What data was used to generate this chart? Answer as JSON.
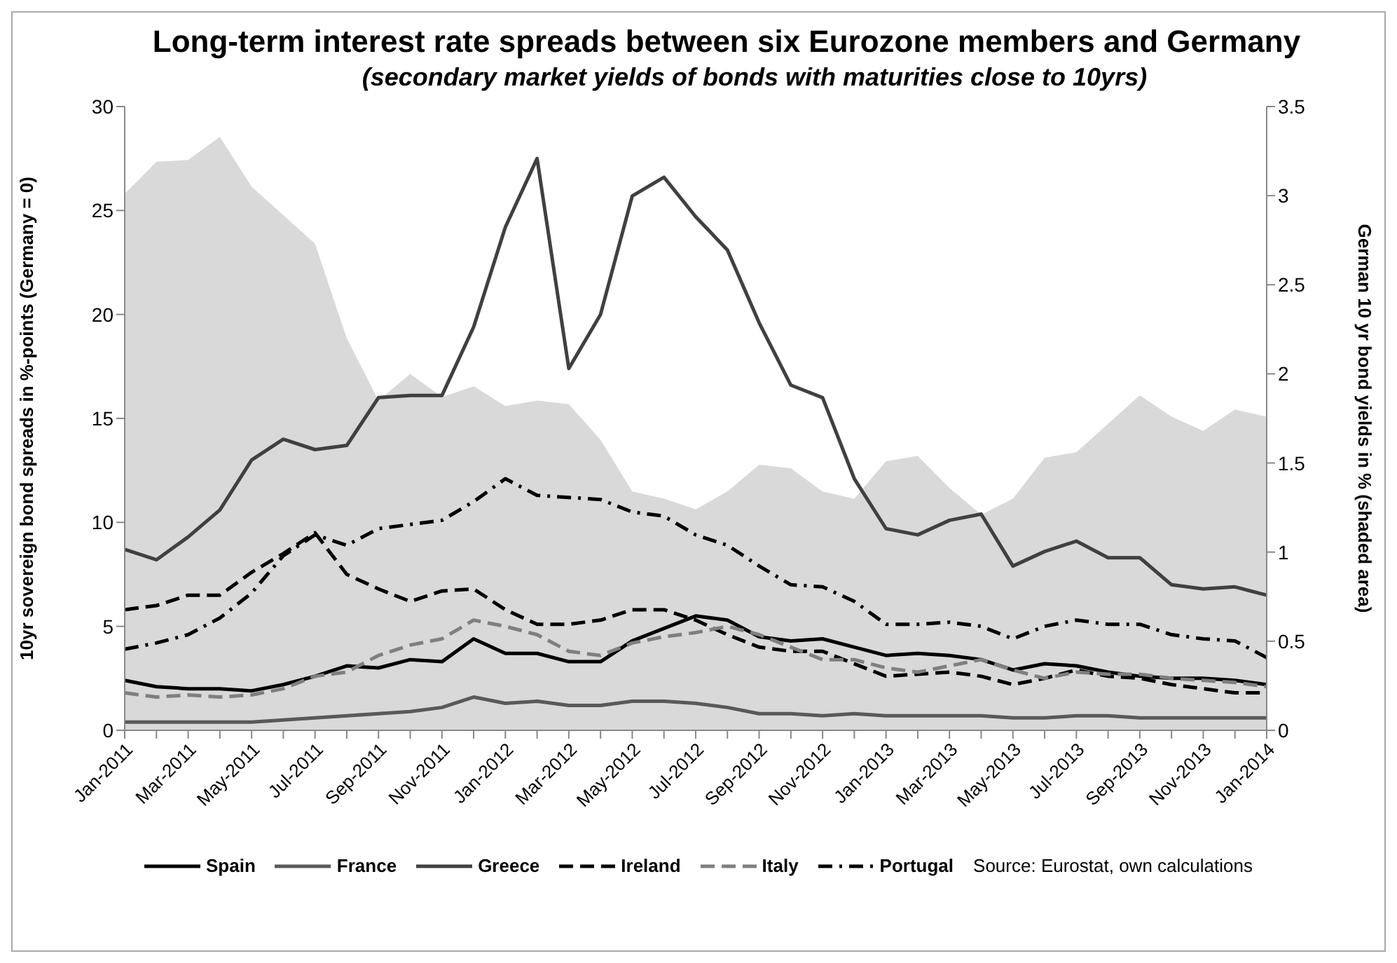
{
  "chart_data": {
    "type": "line",
    "title": "Long-term interest rate spreads between six Eurozone members and Germany",
    "subtitle": "(secondary market yields of bonds with maturities close to 10yrs)",
    "ylabel": "10yr sovereign bond spreads in %-points (Germany = 0)",
    "y2label": "German 10 yr bond yields in % (shaded area)",
    "annotations": [
      "Source: Eurostat, own calculations"
    ],
    "categories": [
      "Jan-2011",
      null,
      "Mar-2011",
      null,
      "May-2011",
      null,
      "Jul-2011",
      null,
      "Sep-2011",
      null,
      "Nov-2011",
      null,
      "Jan-2012",
      null,
      "Mar-2012",
      null,
      "May-2012",
      null,
      "Jul-2012",
      null,
      "Sep-2012",
      null,
      "Nov-2012",
      null,
      "Jan-2013",
      null,
      "Mar-2013",
      null,
      "May-2013",
      null,
      "Jul-2013",
      null,
      "Sep-2013",
      null,
      "Nov-2013",
      null,
      "Jan-2014"
    ],
    "series": [
      {
        "type": "area",
        "axis": "y2",
        "color": "#d9d9d9",
        "values": [
          3.01,
          3.19,
          3.2,
          3.33,
          3.05,
          2.89,
          2.73,
          2.2,
          1.85,
          2.0,
          1.87,
          1.93,
          1.82,
          1.85,
          1.83,
          1.63,
          1.34,
          1.3,
          1.24,
          1.34,
          1.49,
          1.47,
          1.34,
          1.3,
          1.51,
          1.54,
          1.36,
          1.21,
          1.3,
          1.53,
          1.56,
          1.72,
          1.88,
          1.76,
          1.68,
          1.8,
          1.76
        ]
      },
      {
        "name": "Spain",
        "color": "#000000",
        "line_style": "solid",
        "values": [
          2.4,
          2.1,
          2.0,
          2.0,
          1.9,
          2.2,
          2.6,
          3.1,
          3.0,
          3.4,
          3.3,
          4.4,
          3.7,
          3.7,
          3.3,
          3.3,
          4.3,
          4.9,
          5.5,
          5.3,
          4.5,
          4.3,
          4.4,
          4.0,
          3.6,
          3.7,
          3.6,
          3.4,
          2.9,
          3.2,
          3.1,
          2.8,
          2.6,
          2.5,
          2.5,
          2.4,
          2.2
        ]
      },
      {
        "name": "France",
        "color": "#595959",
        "line_style": "solid",
        "values": [
          0.4,
          0.4,
          0.4,
          0.4,
          0.4,
          0.5,
          0.6,
          0.7,
          0.8,
          0.9,
          1.1,
          1.6,
          1.3,
          1.4,
          1.2,
          1.2,
          1.4,
          1.4,
          1.3,
          1.1,
          0.8,
          0.8,
          0.7,
          0.8,
          0.7,
          0.7,
          0.7,
          0.7,
          0.6,
          0.6,
          0.7,
          0.7,
          0.6,
          0.6,
          0.6,
          0.6,
          0.6
        ]
      },
      {
        "name": "Greece",
        "color": "#404040",
        "line_style": "solid",
        "values": [
          8.7,
          8.2,
          9.3,
          10.6,
          13.0,
          14.0,
          13.5,
          13.7,
          16.0,
          16.1,
          16.1,
          19.4,
          24.2,
          27.5,
          17.4,
          20.0,
          25.7,
          26.6,
          24.7,
          23.1,
          19.6,
          16.6,
          16.0,
          12.1,
          9.7,
          9.4,
          10.1,
          10.4,
          7.9,
          8.6,
          9.1,
          8.3,
          8.3,
          7.0,
          6.8,
          6.9,
          6.5
        ]
      },
      {
        "name": "Ireland",
        "color": "#000000",
        "line_style": "dashed",
        "values": [
          5.8,
          6.0,
          6.5,
          6.5,
          7.6,
          8.5,
          9.5,
          7.5,
          6.8,
          6.2,
          6.7,
          6.8,
          5.8,
          5.1,
          5.1,
          5.3,
          5.8,
          5.8,
          5.3,
          4.6,
          4.0,
          3.8,
          3.8,
          3.2,
          2.6,
          2.7,
          2.8,
          2.6,
          2.2,
          2.5,
          2.9,
          2.6,
          2.5,
          2.2,
          2.0,
          1.8,
          1.8
        ]
      },
      {
        "name": "Italy",
        "color": "#7f7f7f",
        "line_style": "dashed",
        "values": [
          1.8,
          1.6,
          1.7,
          1.6,
          1.7,
          2.0,
          2.6,
          2.8,
          3.6,
          4.1,
          4.4,
          5.3,
          5.0,
          4.6,
          3.8,
          3.6,
          4.2,
          4.5,
          4.7,
          5.0,
          4.6,
          4.0,
          3.4,
          3.4,
          3.0,
          2.8,
          3.1,
          3.4,
          2.9,
          2.5,
          2.8,
          2.7,
          2.7,
          2.5,
          2.4,
          2.3,
          2.1
        ]
      },
      {
        "name": "Portugal",
        "color": "#000000",
        "line_style": "dashdot",
        "values": [
          3.9,
          4.2,
          4.6,
          5.4,
          6.6,
          8.4,
          9.4,
          8.9,
          9.7,
          9.9,
          10.1,
          11.0,
          12.1,
          11.3,
          11.2,
          11.1,
          10.5,
          10.3,
          9.4,
          8.9,
          7.9,
          7.0,
          6.9,
          6.2,
          5.1,
          5.1,
          5.2,
          5.0,
          4.4,
          5.0,
          5.3,
          5.1,
          5.1,
          4.6,
          4.4,
          4.3,
          3.5
        ]
      }
    ],
    "ylim": [
      0,
      30
    ],
    "yticks": [
      0,
      5,
      10,
      15,
      20,
      25,
      30
    ],
    "y2lim": [
      0,
      3.5
    ],
    "y2ticks": [
      0,
      0.5,
      1,
      1.5,
      2,
      2.5,
      3,
      3.5
    ],
    "grid": false,
    "legend": "bottom",
    "marker": "none"
  }
}
